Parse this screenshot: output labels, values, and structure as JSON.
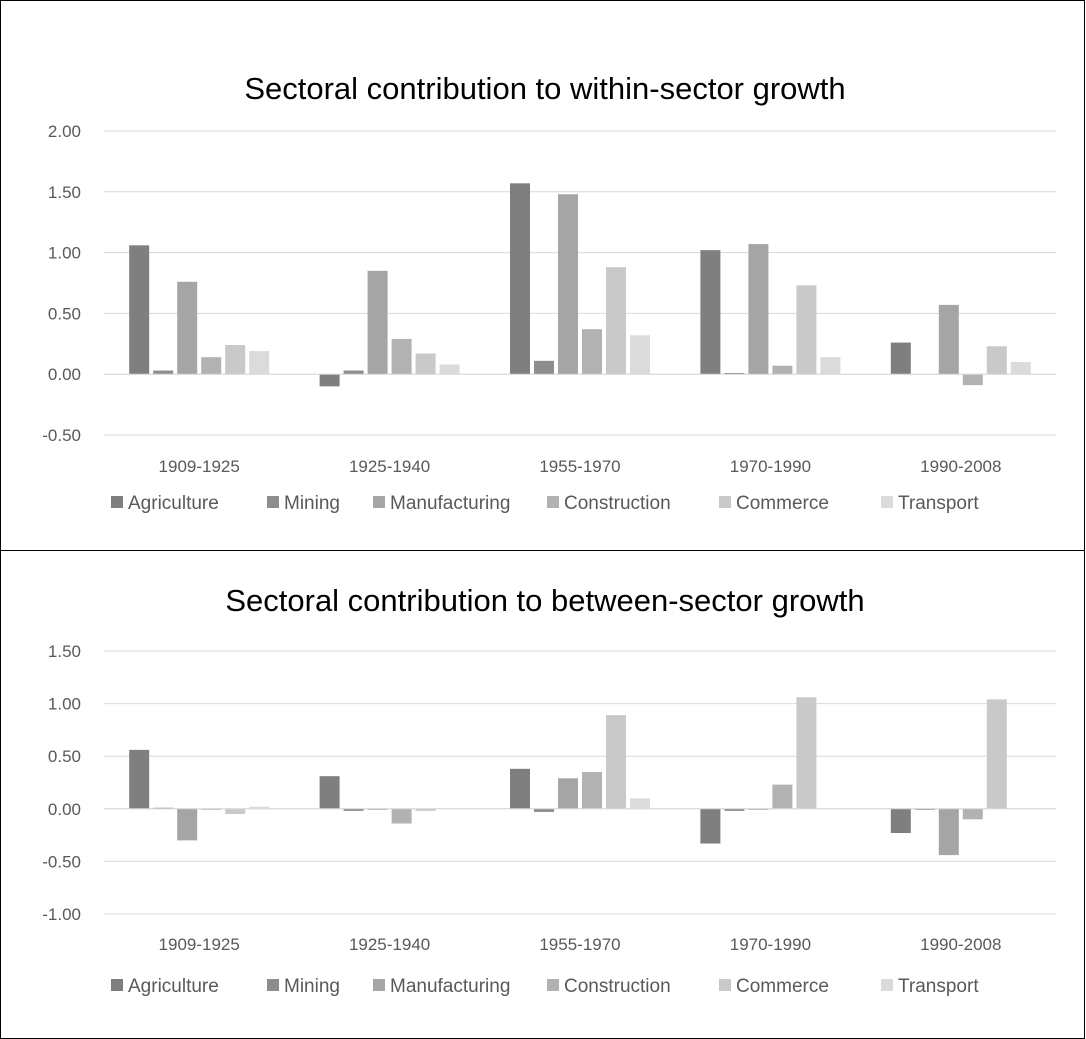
{
  "chart_data": [
    {
      "type": "bar",
      "title": "Sectoral contribution to within-sector growth",
      "categories": [
        "1909-1925",
        "1925-1940",
        "1955-1970",
        "1970-1990",
        "1990-2008"
      ],
      "y_ticks": [
        "2.00",
        "1.50",
        "1.00",
        "0.50",
        "0.00",
        "-0.50"
      ],
      "ylim": [
        -0.5,
        2.0
      ],
      "grid": true,
      "legend_position": "bottom",
      "series": [
        {
          "name": "Agriculture",
          "color": "#7f7f7f",
          "values": [
            1.06,
            -0.1,
            1.57,
            1.02,
            0.26
          ]
        },
        {
          "name": "Mining",
          "color": "#8d8d8d",
          "values": [
            0.03,
            0.03,
            0.11,
            0.01,
            0.0
          ]
        },
        {
          "name": "Manufacturing",
          "color": "#a5a5a5",
          "values": [
            0.76,
            0.85,
            1.48,
            1.07,
            0.57
          ]
        },
        {
          "name": "Construction",
          "color": "#b2b2b2",
          "values": [
            0.14,
            0.29,
            0.37,
            0.07,
            -0.09
          ]
        },
        {
          "name": "Commerce",
          "color": "#c9c9c9",
          "values": [
            0.24,
            0.17,
            0.88,
            0.73,
            0.23
          ]
        },
        {
          "name": "Transport",
          "color": "#dbdbdb",
          "values": [
            0.19,
            0.08,
            0.32,
            0.14,
            0.1
          ]
        }
      ]
    },
    {
      "type": "bar",
      "title": "Sectoral contribution to between-sector growth",
      "categories": [
        "1909-1925",
        "1925-1940",
        "1955-1970",
        "1970-1990",
        "1990-2008"
      ],
      "y_ticks": [
        "1.50",
        "1.00",
        "0.50",
        "0.00",
        "-0.50",
        "-1.00"
      ],
      "ylim": [
        -1.0,
        1.5
      ],
      "grid": true,
      "legend_position": "bottom",
      "series": [
        {
          "name": "Agriculture",
          "color": "#7f7f7f",
          "values": [
            0.56,
            0.31,
            0.38,
            -0.33,
            -0.23
          ]
        },
        {
          "name": "Mining",
          "color": "#8d8d8d",
          "values": [
            0.01,
            -0.02,
            -0.03,
            -0.02,
            -0.01
          ]
        },
        {
          "name": "Manufacturing",
          "color": "#a5a5a5",
          "values": [
            -0.3,
            -0.01,
            0.29,
            -0.01,
            -0.44
          ]
        },
        {
          "name": "Construction",
          "color": "#b2b2b2",
          "values": [
            -0.01,
            -0.14,
            0.35,
            0.23,
            -0.1
          ]
        },
        {
          "name": "Commerce",
          "color": "#c9c9c9",
          "values": [
            -0.05,
            -0.02,
            0.89,
            1.06,
            1.04
          ]
        },
        {
          "name": "Transport",
          "color": "#dbdbdb",
          "values": [
            0.02,
            0.0,
            0.1,
            0.0,
            0.0
          ]
        }
      ]
    }
  ]
}
